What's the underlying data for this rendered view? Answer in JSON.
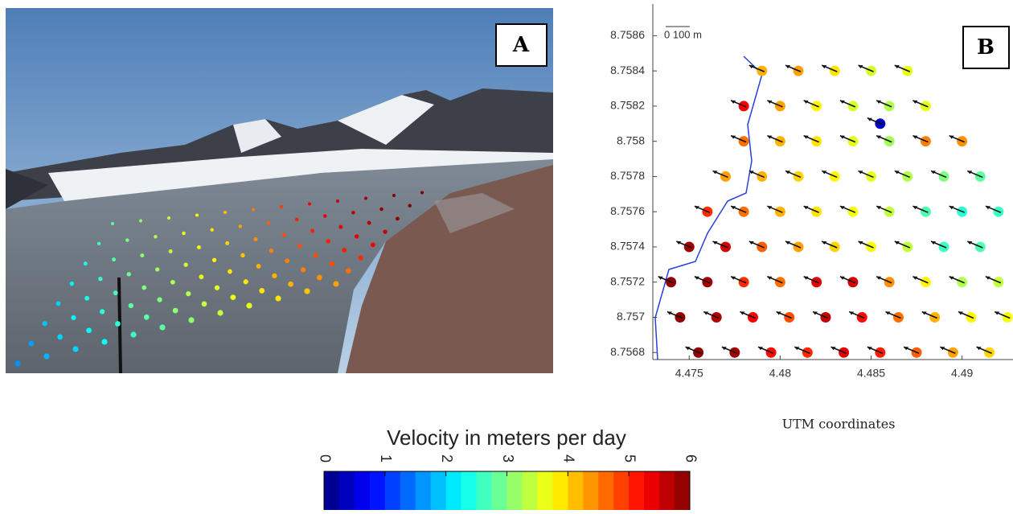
{
  "panel_a": {
    "label": "A",
    "velocities": [
      [
        1.6,
        1.7,
        1.9,
        2.0,
        2.2,
        2.4,
        2.6,
        2.8
      ],
      [
        1.8,
        2.0,
        2.2,
        2.4,
        2.6,
        2.8,
        3.0,
        3.1
      ],
      [
        2.0,
        2.3,
        2.5,
        2.7,
        2.9,
        3.1,
        3.3,
        3.4
      ],
      [
        2.3,
        2.5,
        2.8,
        3.0,
        3.2,
        3.4,
        3.6,
        3.8
      ],
      [
        2.6,
        2.8,
        3.0,
        3.3,
        3.5,
        3.7,
        3.9,
        4.1
      ],
      [
        2.8,
        3.1,
        3.3,
        3.6,
        3.8,
        4.0,
        4.3,
        4.5
      ],
      [
        3.1,
        3.4,
        3.6,
        3.9,
        4.1,
        4.4,
        4.7,
        4.9
      ],
      [
        3.4,
        3.7,
        3.9,
        4.2,
        4.5,
        4.8,
        5.1,
        5.3
      ],
      [
        3.6,
        3.9,
        4.2,
        4.5,
        4.8,
        5.1,
        5.4,
        5.6
      ],
      [
        3.9,
        4.2,
        4.5,
        4.8,
        5.1,
        5.4,
        5.7,
        5.8
      ],
      [
        4.1,
        4.4,
        4.8,
        5.1,
        5.4,
        5.7,
        5.9,
        6.0
      ],
      [
        4.3,
        4.6,
        5.0,
        5.3,
        5.6,
        5.9,
        6.0,
        6.0
      ]
    ]
  },
  "chart_data": {
    "type": "scatter",
    "label": "B",
    "scale_bar": "0 100  m",
    "xlabel": "UTM coordinates",
    "xlim": [
      4.473,
      4.4928
    ],
    "ylim": [
      8.75676,
      8.75878
    ],
    "xticks": [
      4.475,
      4.48,
      4.485,
      4.49
    ],
    "yticks": [
      8.7568,
      8.757,
      8.7572,
      8.7574,
      8.7576,
      8.7578,
      8.758,
      8.7582,
      8.7584,
      8.7586
    ],
    "x": [
      4.479,
      4.481,
      4.483,
      4.485,
      4.487,
      4.478,
      4.48,
      4.482,
      4.484,
      4.486,
      4.488,
      4.478,
      4.48,
      4.482,
      4.484,
      4.486,
      4.488,
      4.49,
      4.477,
      4.479,
      4.481,
      4.483,
      4.485,
      4.487,
      4.489,
      4.491,
      4.476,
      4.478,
      4.48,
      4.482,
      4.484,
      4.486,
      4.488,
      4.49,
      4.492,
      4.475,
      4.477,
      4.479,
      4.481,
      4.483,
      4.485,
      4.487,
      4.489,
      4.491,
      4.474,
      4.476,
      4.478,
      4.48,
      4.482,
      4.484,
      4.486,
      4.488,
      4.49,
      4.492,
      4.4745,
      4.4765,
      4.4785,
      4.4805,
      4.4825,
      4.4845,
      4.4865,
      4.4885,
      4.4905,
      4.4925,
      4.4755,
      4.4775,
      4.4795,
      4.4815,
      4.4835,
      4.4855,
      4.4875,
      4.4895,
      4.4915,
      4.4855
    ],
    "y": [
      8.7584,
      8.7584,
      8.7584,
      8.7584,
      8.7584,
      8.7582,
      8.7582,
      8.7582,
      8.7582,
      8.7582,
      8.7582,
      8.758,
      8.758,
      8.758,
      8.758,
      8.758,
      8.758,
      8.758,
      8.7578,
      8.7578,
      8.7578,
      8.7578,
      8.7578,
      8.7578,
      8.7578,
      8.7578,
      8.7576,
      8.7576,
      8.7576,
      8.7576,
      8.7576,
      8.7576,
      8.7576,
      8.7576,
      8.7576,
      8.7574,
      8.7574,
      8.7574,
      8.7574,
      8.7574,
      8.7574,
      8.7574,
      8.7574,
      8.7574,
      8.7572,
      8.7572,
      8.7572,
      8.7572,
      8.7572,
      8.7572,
      8.7572,
      8.7572,
      8.7572,
      8.7572,
      8.757,
      8.757,
      8.757,
      8.757,
      8.757,
      8.757,
      8.757,
      8.757,
      8.757,
      8.757,
      8.7568,
      8.7568,
      8.7568,
      8.7568,
      8.7568,
      8.7568,
      8.7568,
      8.7568,
      8.7568,
      8.7581
    ],
    "values": [
      4.2,
      4.3,
      3.9,
      3.5,
      3.6,
      5.3,
      4.3,
      3.8,
      3.5,
      3.3,
      3.6,
      4.6,
      4.2,
      3.9,
      3.6,
      3.2,
      4.5,
      4.4,
      4.3,
      4.2,
      4.0,
      3.8,
      3.6,
      3.3,
      3.0,
      2.8,
      5.0,
      4.6,
      4.2,
      3.9,
      3.7,
      3.4,
      2.7,
      2.5,
      2.6,
      5.8,
      5.5,
      4.7,
      4.3,
      4.0,
      3.7,
      3.4,
      2.6,
      2.7,
      5.9,
      5.8,
      5.0,
      4.6,
      5.4,
      5.5,
      4.4,
      3.8,
      3.3,
      3.4,
      5.9,
      5.7,
      5.3,
      4.8,
      5.6,
      5.2,
      4.6,
      4.2,
      3.8,
      3.7,
      5.9,
      5.8,
      5.2,
      5.0,
      5.4,
      5.1,
      4.7,
      4.3,
      4.0,
      0.4
    ],
    "colorbar": {
      "title": "Velocity in meters per day",
      "colormap": "jet",
      "lim": [
        0,
        6
      ],
      "ticks": [
        0,
        1,
        2,
        3,
        4,
        5,
        6
      ]
    }
  }
}
